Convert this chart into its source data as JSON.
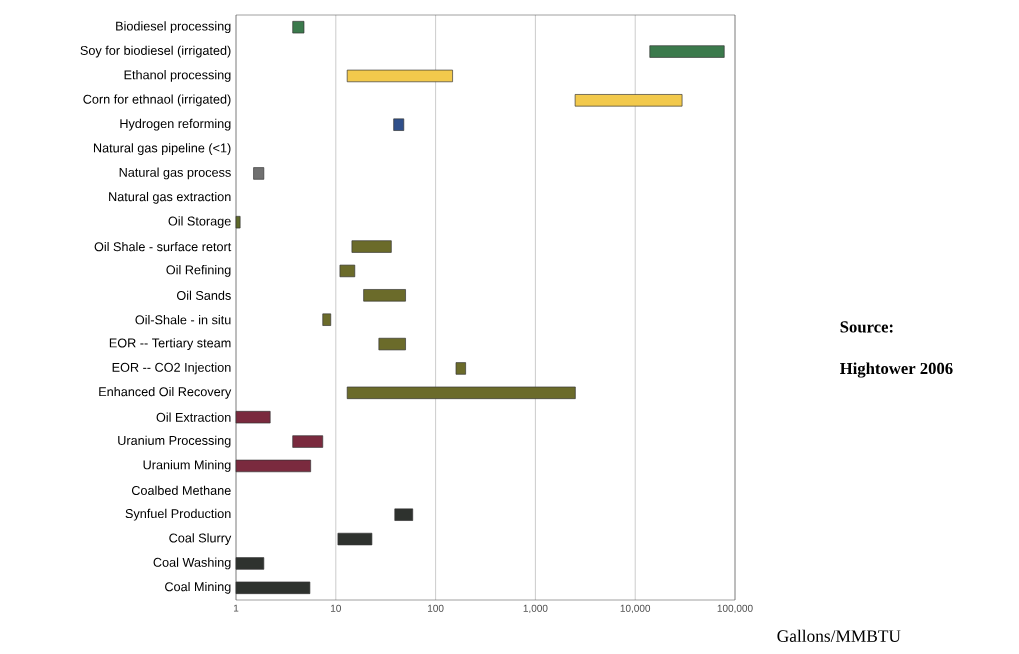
{
  "chart_data": {
    "type": "bar",
    "orientation": "horizontal",
    "log": "x",
    "grid": "x",
    "xlabel": "Gallons/MMBTU",
    "categories": [
      "Biodiesel processing",
      "Soy for biodiesel (irrigated)",
      "Ethanol processing",
      "Corn for ethnaol (irrigated)",
      "Hydrogen reforming",
      "Natural gas pipeline (<1)",
      "Natural gas process",
      "Natural gas extraction",
      "Oil Storage",
      "Oil Shale - surface retort",
      "Oil Refining",
      "Oil Sands",
      "Oil-Shale - in situ",
      "EOR -- Tertiary steam",
      "EOR --  CO2 Injection",
      "Enhanced Oil Recovery",
      "Oil Extraction",
      "Uranium Processing",
      "Uranium Mining",
      "Coalbed Methane",
      "Synfuel Production",
      "Coal Slurry",
      "Coal Washing",
      "Coal Mining"
    ],
    "base": [
      3.7,
      14000,
      13,
      2500,
      38,
      null,
      1.5,
      null,
      1,
      14.5,
      11,
      19,
      7.4,
      27,
      160,
      13,
      1,
      3.7,
      1,
      null,
      39,
      10.5,
      1,
      1
    ],
    "values": [
      1.1,
      64000,
      135,
      27000,
      10,
      null,
      0.4,
      null,
      0.1,
      21.5,
      4.5,
      31,
      1.5,
      23,
      40,
      2500,
      1.2,
      3.7,
      4.6,
      null,
      20,
      12.5,
      0.9,
      4.5
    ],
    "colors": [
      "#3b7a4c",
      "#3b7a4c",
      "#f2c94c",
      "#f2c94c",
      "#2f4f8a",
      null,
      "#707070",
      null,
      "#5f6a2a",
      "#6b6b2a",
      "#6b6b2a",
      "#6b6b2a",
      "#6b6b2a",
      "#6b6b2a",
      "#6b6b2a",
      "#6b6b2a",
      "#7a2a3e",
      "#7a2a3e",
      "#7a2a3e",
      null,
      "#2e322e",
      "#2e322e",
      "#2e322e",
      "#2e322e"
    ],
    "xlim": [
      1,
      100000
    ],
    "xticks": [
      1,
      10,
      100,
      {
        "value": 1000,
        "label": "1,000"
      },
      {
        "value": 10000,
        "label": "10,000"
      },
      {
        "value": 100000,
        "label": "100,000"
      }
    ],
    "annotations": [
      "**Source:**",
      "**Hightower 2006**"
    ]
  }
}
